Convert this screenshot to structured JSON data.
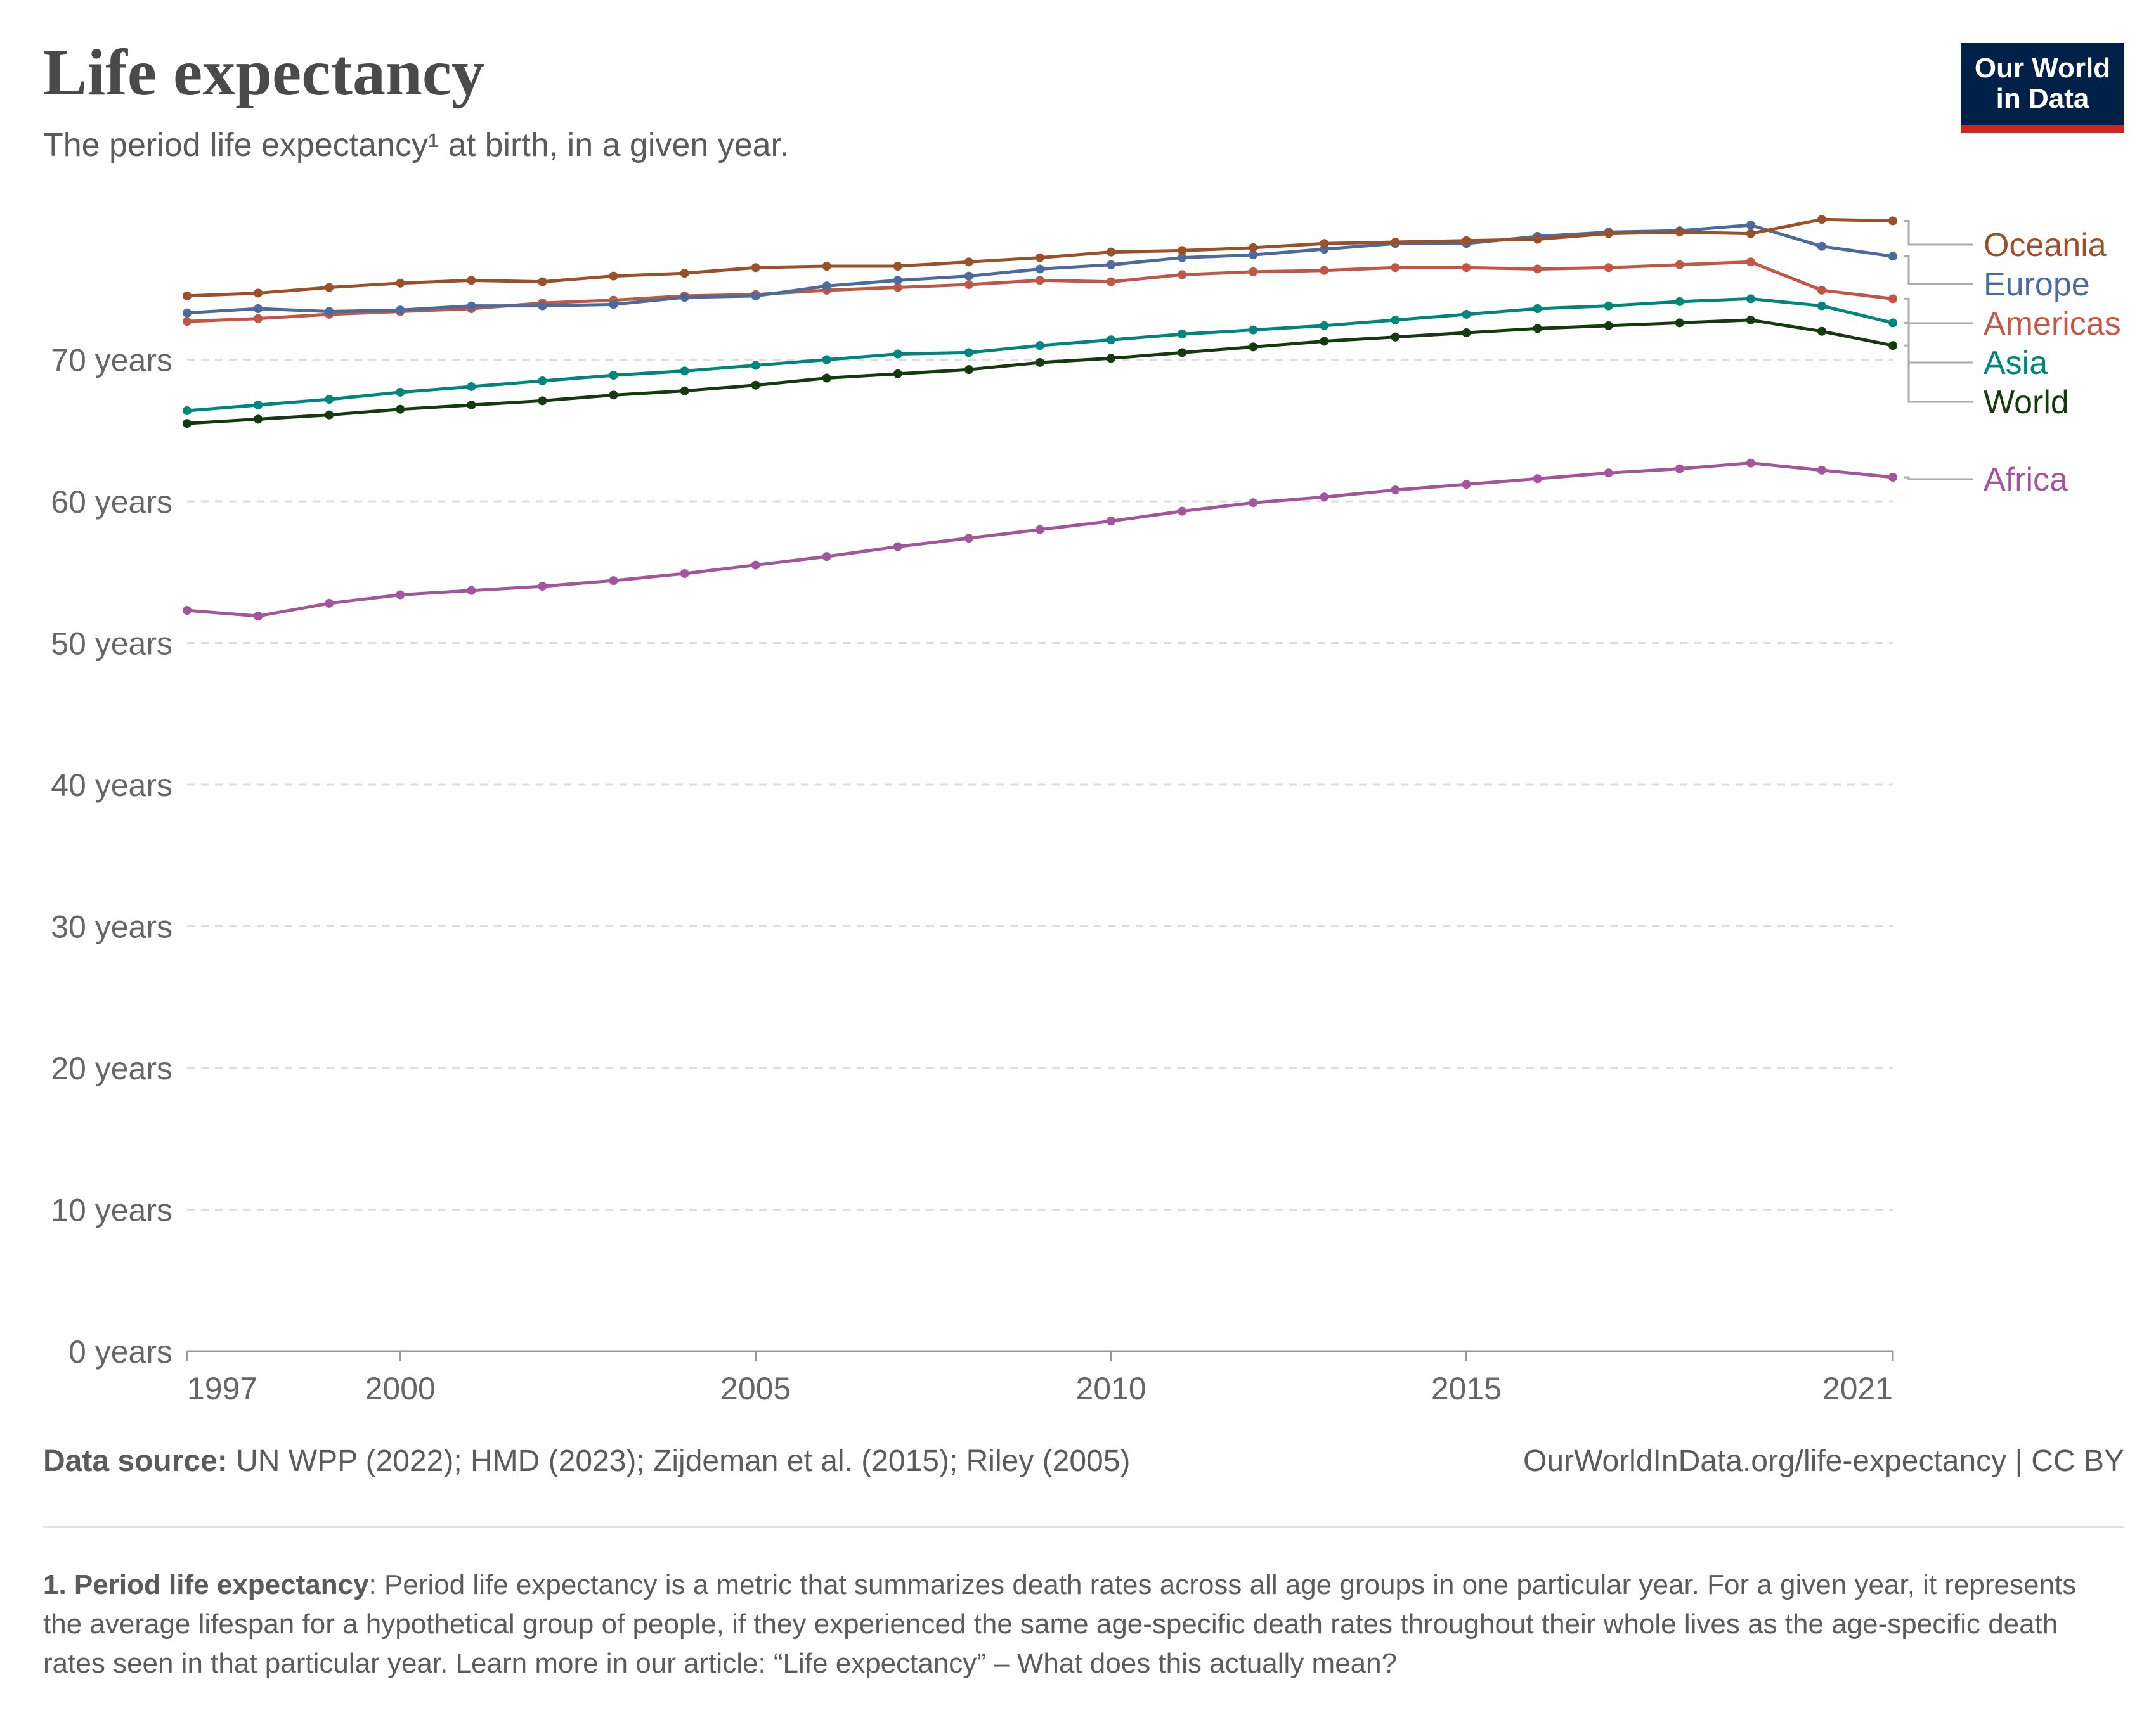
{
  "header": {
    "title": "Life expectancy",
    "subtitle": "The period life expectancy¹ at birth, in a given year."
  },
  "logo": {
    "line1": "Our World",
    "line2": "in Data"
  },
  "footer": {
    "source_label": "Data source:",
    "source_text": "UN WPP (2022); HMD (2023); Zijdeman et al. (2015); Riley (2005)",
    "url": "OurWorldInData.org/life-expectancy | CC BY"
  },
  "note": {
    "term": "1. Period life expectancy",
    "text": ": Period life expectancy is a metric that summarizes death rates across all age groups in one particular year. For a given year, it represents the average lifespan for a hypothetical group of people, if they experienced the same age-specific death rates throughout their whole lives as the age-specific death rates seen in that particular year. Learn more in our article: “Life expectancy” – What does this actually mean?"
  },
  "chart_data": {
    "type": "line",
    "title": "Life expectancy",
    "subtitle": "The period life expectancy¹ at birth, in a given year.",
    "xlim": [
      1997,
      2021
    ],
    "ylim": [
      0,
      80
    ],
    "x_ticks": [
      1997,
      2000,
      2005,
      2010,
      2015,
      2021
    ],
    "y_ticks": [
      0,
      10,
      20,
      30,
      40,
      50,
      60,
      70
    ],
    "y_tick_labels": [
      "0 years",
      "10 years",
      "20 years",
      "30 years",
      "40 years",
      "50 years",
      "60 years",
      "70 years"
    ],
    "grid": "horizontal dashed",
    "legend": "right, labels at line ends",
    "x": [
      1997,
      1998,
      1999,
      2000,
      2001,
      2002,
      2003,
      2004,
      2005,
      2006,
      2007,
      2008,
      2009,
      2010,
      2011,
      2012,
      2013,
      2014,
      2015,
      2016,
      2017,
      2018,
      2019,
      2020,
      2021
    ],
    "series": [
      {
        "name": "Oceania",
        "color": "#9a5129",
        "values": [
          74.5,
          74.7,
          75.1,
          75.4,
          75.6,
          75.5,
          75.9,
          76.1,
          76.5,
          76.6,
          76.6,
          76.9,
          77.2,
          77.6,
          77.7,
          77.9,
          78.2,
          78.3,
          78.4,
          78.5,
          78.9,
          79.0,
          78.9,
          79.9,
          79.8
        ]
      },
      {
        "name": "Europe",
        "color": "#4c6a9c",
        "values": [
          73.3,
          73.6,
          73.4,
          73.5,
          73.8,
          73.8,
          73.9,
          74.4,
          74.5,
          75.2,
          75.6,
          75.9,
          76.4,
          76.7,
          77.2,
          77.4,
          77.8,
          78.2,
          78.2,
          78.7,
          79.0,
          79.1,
          79.5,
          78.0,
          77.3
        ]
      },
      {
        "name": "Americas",
        "color": "#c05746",
        "values": [
          72.7,
          72.9,
          73.2,
          73.4,
          73.6,
          74.0,
          74.2,
          74.5,
          74.6,
          74.9,
          75.1,
          75.3,
          75.6,
          75.5,
          76.0,
          76.2,
          76.3,
          76.5,
          76.5,
          76.4,
          76.5,
          76.7,
          76.9,
          74.9,
          74.3
        ]
      },
      {
        "name": "Asia",
        "color": "#00847e",
        "values": [
          66.4,
          66.8,
          67.2,
          67.7,
          68.1,
          68.5,
          68.9,
          69.2,
          69.6,
          70.0,
          70.4,
          70.5,
          71.0,
          71.4,
          71.8,
          72.1,
          72.4,
          72.8,
          73.2,
          73.6,
          73.8,
          74.1,
          74.3,
          73.8,
          72.6
        ]
      },
      {
        "name": "World",
        "color": "#163a0f",
        "values": [
          65.5,
          65.8,
          66.1,
          66.5,
          66.8,
          67.1,
          67.5,
          67.8,
          68.2,
          68.7,
          69.0,
          69.3,
          69.8,
          70.1,
          70.5,
          70.9,
          71.3,
          71.6,
          71.9,
          72.2,
          72.4,
          72.6,
          72.8,
          72.0,
          71.0
        ]
      },
      {
        "name": "Africa",
        "color": "#a2559c",
        "values": [
          52.3,
          51.9,
          52.8,
          53.4,
          53.7,
          54.0,
          54.4,
          54.9,
          55.5,
          56.1,
          56.8,
          57.4,
          58.0,
          58.6,
          59.3,
          59.9,
          60.3,
          60.8,
          61.2,
          61.6,
          62.0,
          62.3,
          62.7,
          62.2,
          61.7
        ]
      }
    ]
  }
}
